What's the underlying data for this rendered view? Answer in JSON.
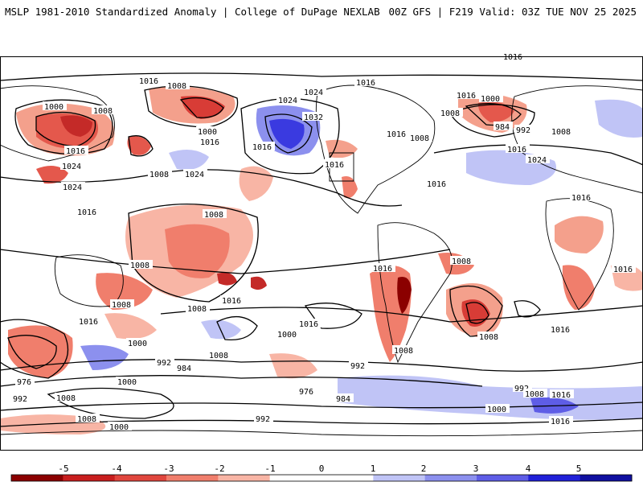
{
  "header": {
    "left_title": "MSLP 1981-2010 Standardized Anomaly | College of DuPage NEXLAB",
    "right_title": "00Z GFS | F219 Valid: 03Z TUE NOV 25 2025"
  },
  "colorbar": {
    "ticks": [
      "-5",
      "-4",
      "-3",
      "-2",
      "-1",
      "0",
      "1",
      "2",
      "3",
      "4",
      "5"
    ],
    "colors": [
      "#8b0000",
      "#c81e1e",
      "#e0463e",
      "#f07e6c",
      "#f8b5a5",
      "#ffffff",
      "#ffffff",
      "#c0c4f6",
      "#8c90ee",
      "#5e5de6",
      "#2020d8",
      "#1010a0"
    ]
  },
  "isobar_labels": [
    "1016",
    "1016",
    "1008",
    "1000",
    "1008",
    "1016",
    "1024",
    "1024",
    "1024",
    "1016",
    "1008",
    "1000",
    "1016",
    "1024",
    "1032",
    "1016",
    "1016",
    "1016",
    "1008",
    "1016",
    "1000",
    "1008",
    "984",
    "992",
    "1008",
    "1016",
    "1024",
    "1016",
    "1008",
    "1016",
    "1016",
    "1016",
    "1008",
    "1008",
    "1008",
    "1016",
    "1016",
    "1016",
    "1008",
    "1000",
    "1008",
    "1016",
    "1000",
    "1008",
    "992",
    "984",
    "992",
    "976",
    "984",
    "1008",
    "992",
    "976",
    "1008",
    "1000",
    "992",
    "1000",
    "1008",
    "1016",
    "1016",
    "992",
    "1000",
    "1008",
    "1024",
    "1016",
    "1016"
  ]
}
